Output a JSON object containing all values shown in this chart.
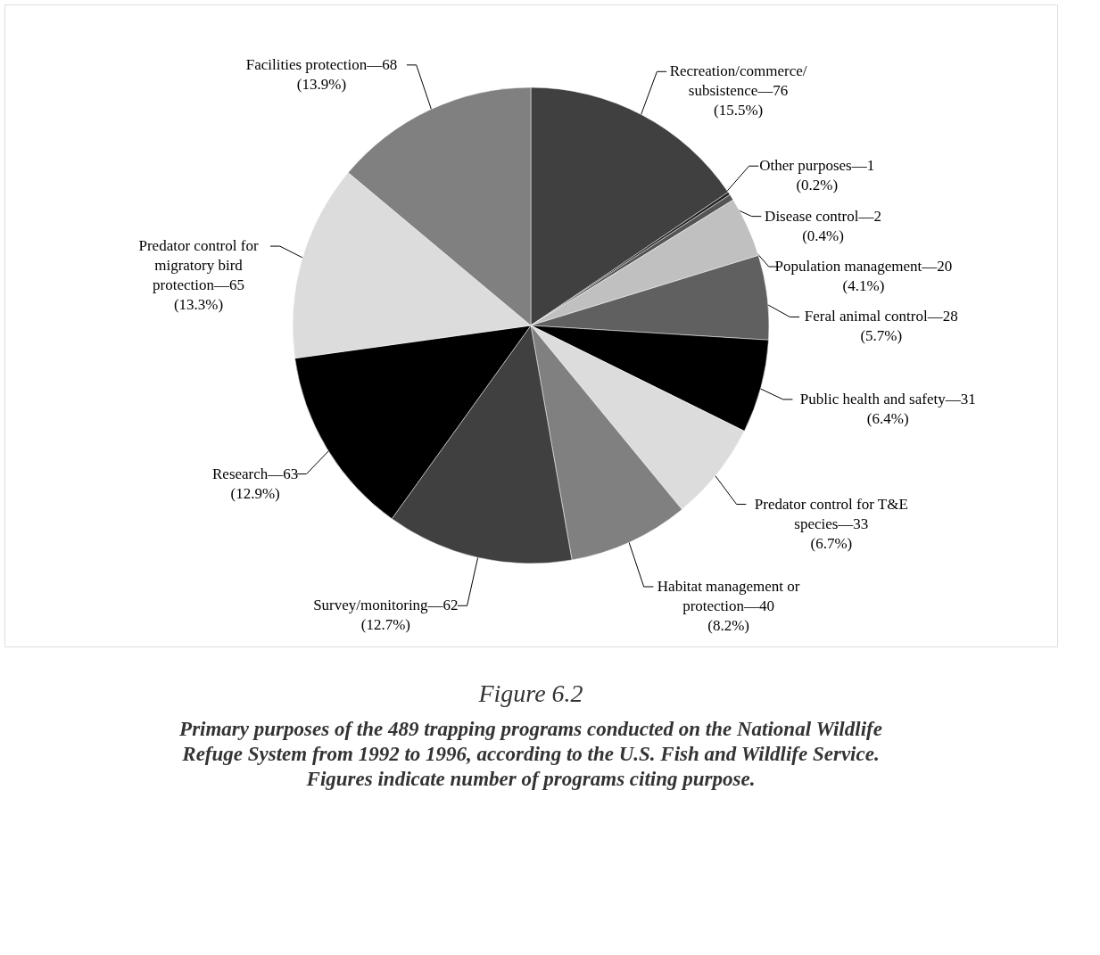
{
  "chart_data": {
    "type": "pie",
    "title": "Figure 6.2",
    "subtitle": "Primary purposes of the 489 trapping programs conducted on the National Wildlife Refuge System from 1992 to 1996, according to the U.S. Fish and Wildlife Service. Figures indicate number of programs citing purpose.",
    "categories": [
      "Recreation/commerce/subsistence",
      "Other purposes",
      "Disease control",
      "Population management",
      "Feral animal control",
      "Public health and safety",
      "Predator control for T&E species",
      "Habitat management or protection",
      "Survey/monitoring",
      "Research",
      "Predator control for migratory bird protection",
      "Facilities protection"
    ],
    "values": [
      76,
      1,
      2,
      20,
      28,
      31,
      33,
      40,
      62,
      63,
      65,
      68
    ],
    "colors": [
      "#404040",
      "#202020",
      "#555555",
      "#c0c0c0",
      "#606060",
      "#000000",
      "#dcdcdc",
      "#808080",
      "#404040",
      "#000000",
      "#dcdcdc",
      "#808080"
    ],
    "value_labels": [
      "—76\n(15.5%)",
      "—1\n(0.2%)",
      "—2\n(0.4%)",
      "—20\n(4.1%)",
      "—28\n(5.7%)",
      "—31\n(6.4%)",
      "—33\n(6.7%)",
      "—40\n(8.2%)",
      "—62\n(12.7%)",
      "—63\n(12.9%)",
      "—65\n(13.3%)",
      "—68\n(13.9%)"
    ]
  }
}
